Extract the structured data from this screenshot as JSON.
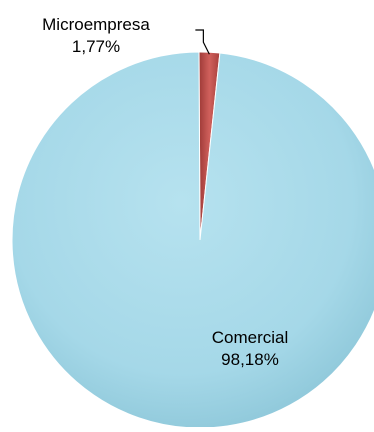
{
  "chart_data": {
    "type": "pie",
    "title": "",
    "slices": [
      {
        "label": "Microempresa",
        "value": 1.77,
        "value_label": "1,77%",
        "color": "#c0504d",
        "label_position": "outside"
      },
      {
        "label": "Comercial",
        "value": 98.18,
        "value_label": "98,18%",
        "color": "#a5d8e8",
        "label_position": "inside"
      }
    ],
    "legend": "none"
  }
}
